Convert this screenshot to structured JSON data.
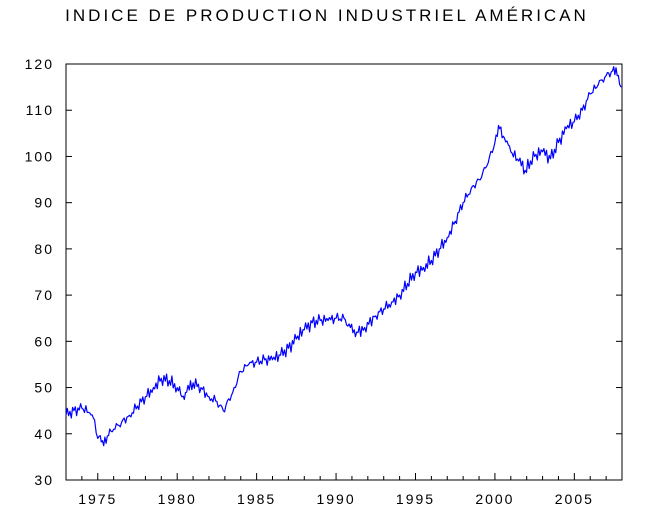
{
  "chart_data": {
    "type": "line",
    "title": "INDICE DE PRODUCTION INDUSTRIEL AMÉRICAN",
    "xlabel": "",
    "ylabel": "",
    "xlim": [
      1973.0,
      2008.0
    ],
    "ylim": [
      30,
      120
    ],
    "x_ticks": [
      1975,
      1980,
      1985,
      1990,
      1995,
      2000,
      2005
    ],
    "x_tick_labels": [
      "1975",
      "1980",
      "1985",
      "1990",
      "1995",
      "2000",
      "2005"
    ],
    "y_ticks": [
      30,
      40,
      50,
      60,
      70,
      80,
      90,
      100,
      110,
      120
    ],
    "y_tick_labels": [
      "30",
      "40",
      "50",
      "60",
      "70",
      "80",
      "90",
      "100",
      "110",
      "120"
    ],
    "grid": false,
    "legend": "none",
    "series_color": "#0000ff",
    "series": [
      {
        "x": [
          1973.0,
          1973.5,
          1974.0,
          1974.5,
          1974.8,
          1975.0,
          1975.3,
          1975.6,
          1976.0,
          1976.5,
          1977.0,
          1977.5,
          1978.0,
          1978.5,
          1979.0,
          1979.5,
          1980.0,
          1980.3,
          1980.6,
          1981.0,
          1981.5,
          1982.0,
          1982.5,
          1982.9,
          1983.5,
          1984.0,
          1984.5,
          1985.0,
          1985.5,
          1986.0,
          1986.5,
          1987.0,
          1987.5,
          1988.0,
          1988.5,
          1989.0,
          1989.5,
          1990.0,
          1990.5,
          1990.9,
          1991.3,
          1991.8,
          1992.5,
          1993.0,
          1993.5,
          1994.0,
          1994.5,
          1995.0,
          1995.5,
          1996.0,
          1996.5,
          1997.0,
          1997.5,
          1998.0,
          1998.5,
          1999.0,
          1999.5,
          2000.0,
          2000.3,
          2000.6,
          2001.0,
          2001.5,
          2001.9,
          2002.5,
          2003.0,
          2003.5,
          2004.0,
          2004.5,
          2005.0,
          2005.5,
          2006.0,
          2006.5,
          2007.0,
          2007.4,
          2007.7,
          2008.0
        ],
        "y": [
          44,
          45,
          45.5,
          44.5,
          43,
          39,
          38.5,
          39.5,
          41,
          42.5,
          44,
          46,
          48,
          50,
          52,
          51.5,
          50,
          48,
          49,
          51,
          50,
          48,
          47,
          45,
          49,
          53.5,
          55,
          55.5,
          56,
          56,
          57,
          58.5,
          60.5,
          62.5,
          64,
          64.5,
          64.5,
          65,
          65,
          63,
          62,
          63,
          65.5,
          67,
          68.5,
          70,
          72.5,
          75,
          76,
          77.5,
          80,
          82.5,
          86,
          90,
          93,
          95,
          98,
          103,
          106,
          104,
          101,
          99,
          97,
          100,
          101,
          99.5,
          103,
          106,
          107.5,
          110,
          113.5,
          115.5,
          117.5,
          118.5,
          117.5,
          115
        ]
      }
    ]
  }
}
